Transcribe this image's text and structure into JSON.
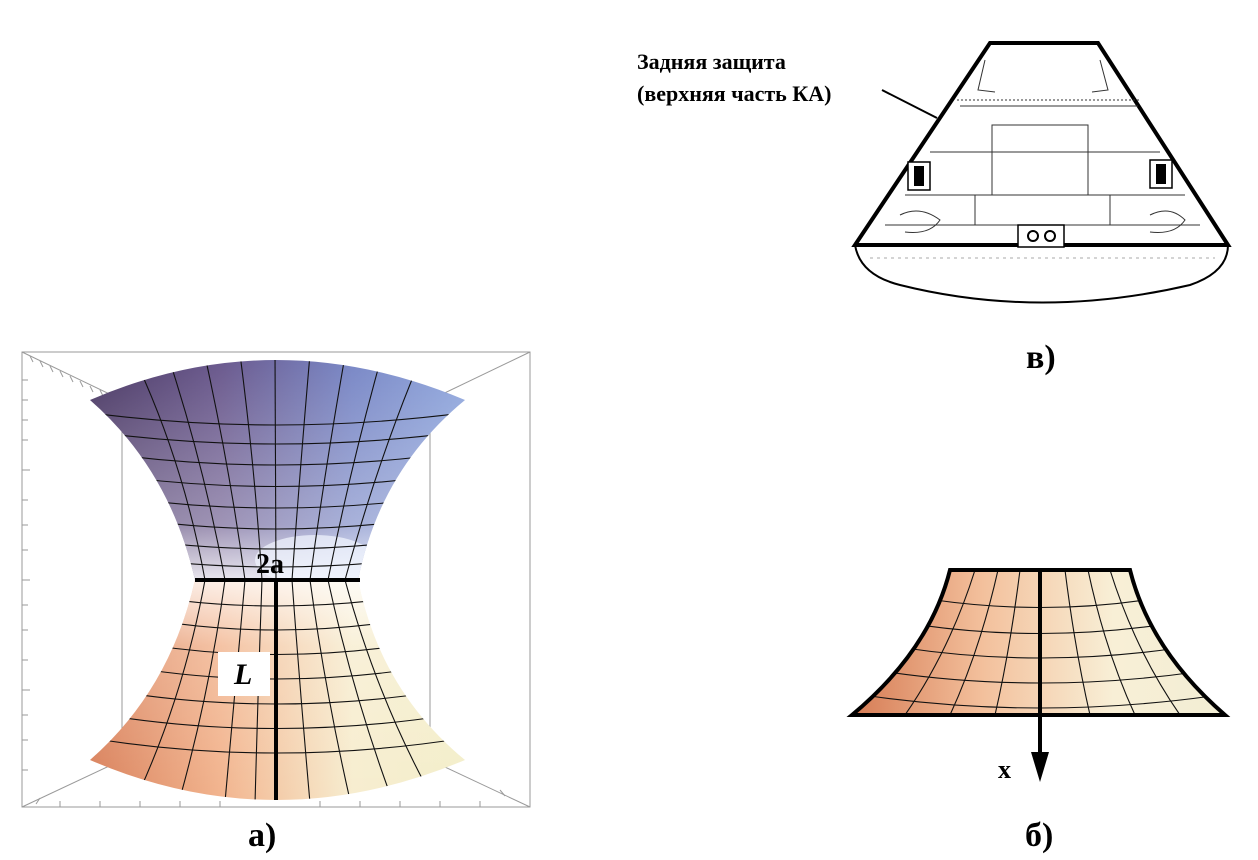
{
  "panel_a": {
    "caption": "а)",
    "neck_label": "2a",
    "length_label": "L",
    "colors": {
      "top_dark": "#4b3a66",
      "top_light": "#8c9fd8",
      "bottom_warm": "#e89a6a",
      "bottom_light": "#f5f0cf"
    }
  },
  "panel_b": {
    "caption": "б)",
    "axis_label": "x",
    "colors": {
      "warm": "#e49a6d",
      "light": "#f4f1d6"
    }
  },
  "panel_c": {
    "caption": "в)",
    "annotation_line1": "Задняя защита",
    "annotation_line2": "(верхняя часть КА)"
  }
}
